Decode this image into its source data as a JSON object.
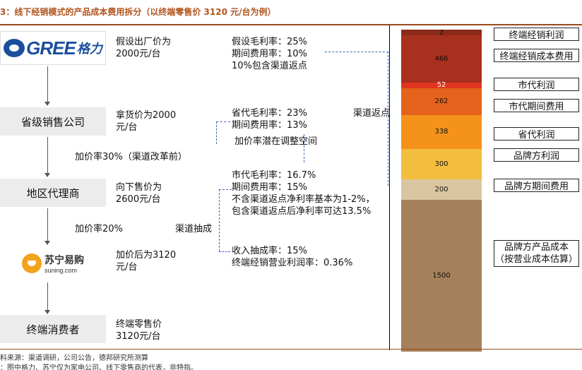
{
  "title": "3：线下经销模式的产品成本费用拆分（以终端零售价 3120 元/台为例）",
  "logos": {
    "gree_text": "GREE",
    "gree_cn": "格力",
    "suning_cn": "苏宁易购",
    "suning_en": "suning.com"
  },
  "chain": [
    {
      "name": "",
      "price_lines": [
        "假设出厂价为",
        "2000元/台"
      ]
    },
    {
      "name": "省级销售公司",
      "price_lines": [
        "拿货价为2000",
        "元/台"
      ]
    },
    {
      "name": "地区代理商",
      "price_lines": [
        "向下售价为",
        "2600元/台"
      ]
    },
    {
      "name": "",
      "price_lines": [
        "加价后为3120",
        "元/台"
      ]
    },
    {
      "name": "终端消费者",
      "price_lines": [
        "终端零售价",
        "3120元/台"
      ]
    }
  ],
  "markups": {
    "m1": "加价率30%（渠道改革前）",
    "m2": "加价率20%"
  },
  "notes": {
    "brand": [
      "假设毛利率：25%",
      "期间费用率：10%",
      "10%包含渠道返点"
    ],
    "province": [
      "省代毛利率：23%",
      "期间费用率：13%"
    ],
    "province_hint": "加价率潜在调整空间",
    "rebate": "渠道返点",
    "city": [
      "市代毛利率：16.7%",
      "期间费用率：15%",
      "不含渠道返点净利率基本为1-2%，",
      "包含渠道返点后净利率可达13.5%"
    ],
    "extraction": "渠道抽成",
    "retailer": [
      "收入抽成率：15%",
      "终端经销营业利润率：0.36%"
    ]
  },
  "chart_data": {
    "type": "bar",
    "stacked": true,
    "total": 3120,
    "segments": [
      {
        "value": 2,
        "label": "终端经销利润",
        "color": "#8c2b1a"
      },
      {
        "value": 466,
        "label": "终端经销成本费用",
        "color": "#a8301f"
      },
      {
        "value": 52,
        "label": "市代利润",
        "color": "#e0361f"
      },
      {
        "value": 262,
        "label": "市代期间费用",
        "color": "#e5621c"
      },
      {
        "value": 338,
        "label": "省代利润",
        "color": "#f4921b"
      },
      {
        "value": 300,
        "label": "品牌方利润",
        "color": "#f3bd3e"
      },
      {
        "value": 200,
        "label": "品牌方期间费用",
        "color": "#d9c6a0"
      },
      {
        "value": 1500,
        "label": "品牌方产品成本",
        "label2": "（按营业成本估算）",
        "color": "#a4815a"
      }
    ]
  },
  "footer": {
    "source": "料来源：渠道调研，公司公告，德邦研究所测算",
    "note": "：图中格力、苏宁仅为家电公司、线下零售商的代表，非特指。"
  }
}
